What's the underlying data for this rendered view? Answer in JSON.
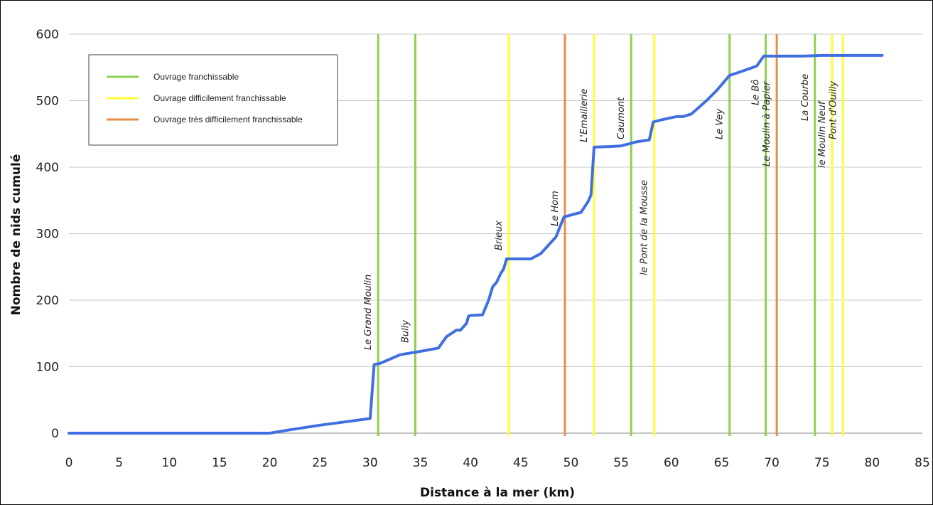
{
  "chart_data": {
    "type": "line",
    "title": "",
    "xlabel": "Distance à la mer (km)",
    "ylabel": "Nombre de nids cumulé",
    "xlim": [
      0,
      85
    ],
    "ylim": [
      0,
      600
    ],
    "x_ticks": [
      "0",
      "5",
      "10",
      "15",
      "20",
      "25",
      "30",
      "35",
      "40",
      "45",
      "50",
      "55",
      "60",
      "65",
      "70",
      "75",
      "80",
      "85"
    ],
    "y_ticks": [
      "0",
      "100",
      "200",
      "300",
      "400",
      "500",
      "600"
    ],
    "grid": "horizontal",
    "legend_position": "top-left",
    "legend": [
      {
        "key": "franchissable",
        "label": "Ouvrage franchissable",
        "color": "#8fcf4f"
      },
      {
        "key": "difficile",
        "label": "Ouvrage difficilement franchissable",
        "color": "#ffff33"
      },
      {
        "key": "tres_difficile",
        "label": "Ouvrage très difficilement franchissable",
        "color": "#e58d4c"
      }
    ],
    "series": [
      {
        "color": "#3f6fe0",
        "points": [
          [
            0,
            0
          ],
          [
            20,
            0
          ],
          [
            22,
            5
          ],
          [
            25,
            12
          ],
          [
            28,
            18
          ],
          [
            30,
            22
          ],
          [
            30.4,
            103
          ],
          [
            31,
            105
          ],
          [
            33,
            118
          ],
          [
            35,
            123
          ],
          [
            36.8,
            128
          ],
          [
            37.6,
            145
          ],
          [
            38.6,
            155
          ],
          [
            39,
            155
          ],
          [
            39.6,
            165
          ],
          [
            39.8,
            176
          ],
          [
            40,
            177
          ],
          [
            41.2,
            178
          ],
          [
            41.8,
            200
          ],
          [
            42.2,
            220
          ],
          [
            42.6,
            227
          ],
          [
            43,
            240
          ],
          [
            43.3,
            247
          ],
          [
            43.6,
            262
          ],
          [
            44,
            262
          ],
          [
            46,
            262
          ],
          [
            47,
            270
          ],
          [
            48.5,
            295
          ],
          [
            49.3,
            325
          ],
          [
            50,
            328
          ],
          [
            51,
            332
          ],
          [
            51.7,
            348
          ],
          [
            52,
            358
          ],
          [
            52.3,
            430
          ],
          [
            54,
            431
          ],
          [
            55,
            432
          ],
          [
            56.5,
            438
          ],
          [
            57.8,
            441
          ],
          [
            58.2,
            468
          ],
          [
            59,
            471
          ],
          [
            60.5,
            476
          ],
          [
            61.2,
            476
          ],
          [
            62,
            480
          ],
          [
            63.5,
            500
          ],
          [
            64.5,
            515
          ],
          [
            65.8,
            538
          ],
          [
            67,
            544
          ],
          [
            68.5,
            552
          ],
          [
            69.2,
            567
          ],
          [
            71,
            567
          ],
          [
            73,
            567
          ],
          [
            75,
            568
          ],
          [
            78,
            568
          ],
          [
            81,
            568
          ]
        ]
      }
    ],
    "ouvrages": [
      {
        "name": "Le Grand Moulin",
        "x": 30.8,
        "type": "franchissable"
      },
      {
        "name": "Bully",
        "x": 34.5,
        "type": "franchissable"
      },
      {
        "name": "Brieux",
        "x": 43.8,
        "type": "difficile"
      },
      {
        "name": "Le Hom",
        "x": 49.4,
        "type": "tres_difficile"
      },
      {
        "name": "L'Emaillerie",
        "x": 52.3,
        "type": "difficile"
      },
      {
        "name": "Caumont",
        "x": 56.0,
        "type": "franchissable"
      },
      {
        "name": "le Pont de la Mousse",
        "x": 58.3,
        "type": "difficile"
      },
      {
        "name": "Le Vey",
        "x": 65.8,
        "type": "franchissable"
      },
      {
        "name": "Le Bô",
        "x": 69.4,
        "type": "franchissable"
      },
      {
        "name": "Le Moulin à Papier",
        "x": 70.5,
        "type": "tres_difficile"
      },
      {
        "name": "La Courbe",
        "x": 74.3,
        "type": "franchissable"
      },
      {
        "name": "le Moulin Neuf",
        "x": 76.0,
        "type": "difficile"
      },
      {
        "name": "Pont d'Ouilly",
        "x": 77.1,
        "type": "difficile"
      }
    ]
  }
}
